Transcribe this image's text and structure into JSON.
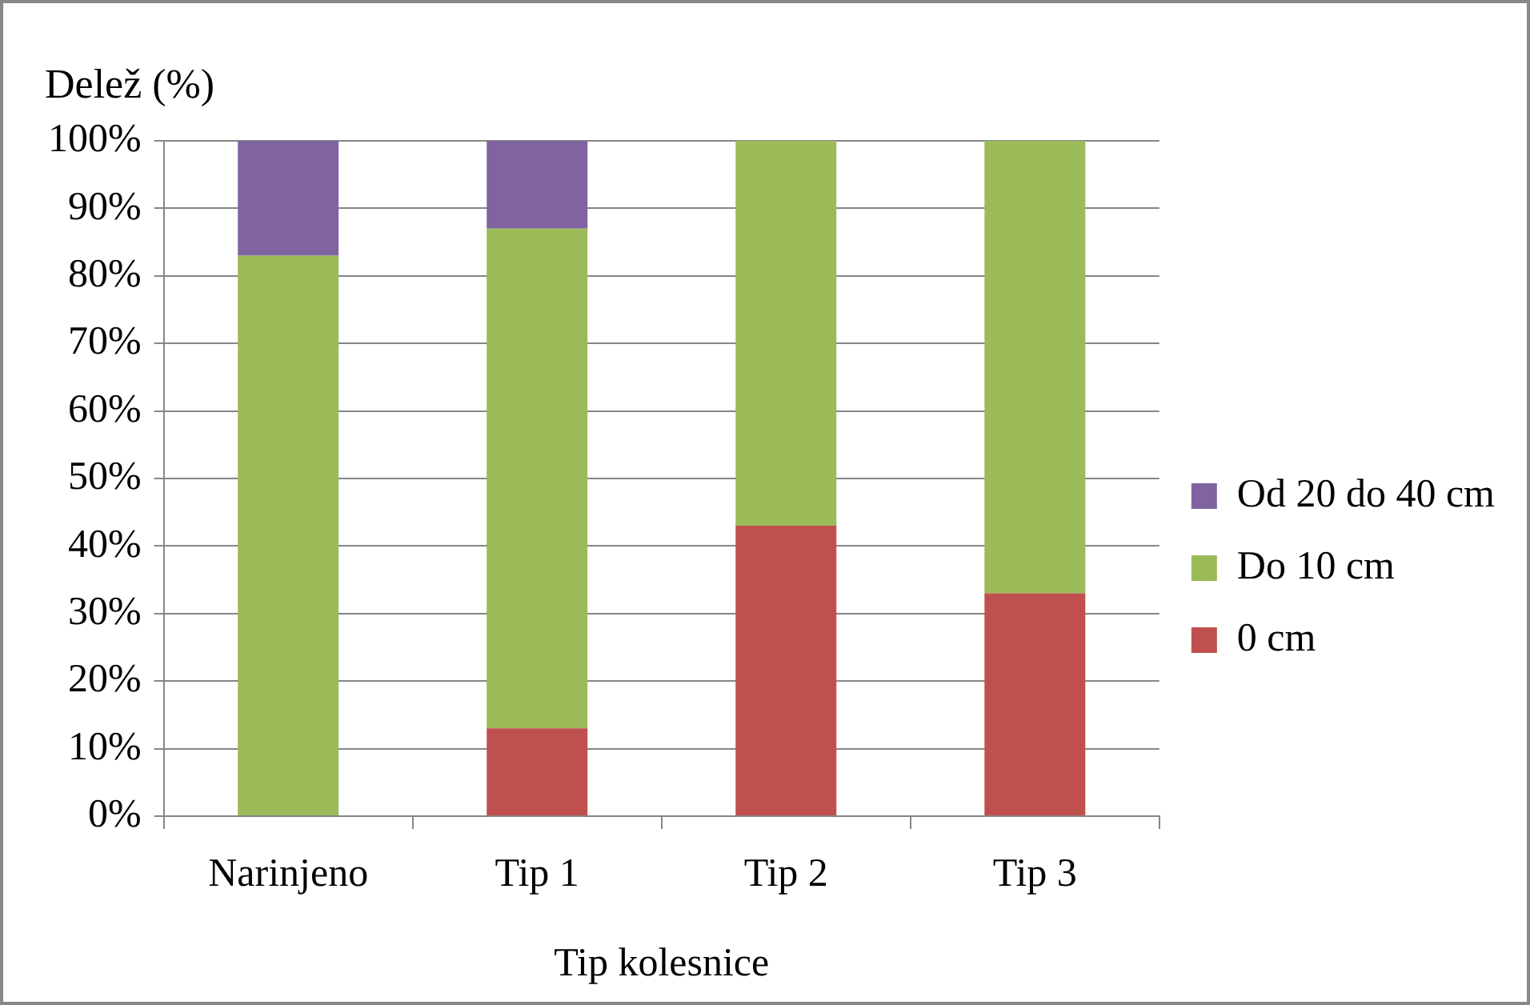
{
  "chart_data": {
    "type": "bar",
    "stacked": true,
    "ylabel": "Delež (%)",
    "xlabel": "Tip kolesnice",
    "categories": [
      "Narinjeno",
      "Tip 1",
      "Tip 2",
      "Tip 3"
    ],
    "series": [
      {
        "name": "0 cm",
        "color": "#c0504d",
        "values": [
          0,
          13,
          43,
          33
        ]
      },
      {
        "name": "Do 10 cm",
        "color": "#9bbb59",
        "values": [
          83,
          74,
          57,
          67
        ]
      },
      {
        "name": "Od 20 do 40 cm",
        "color": "#8064a2",
        "values": [
          17,
          13,
          0,
          0
        ]
      }
    ],
    "ylim": [
      0,
      100
    ],
    "yticks": [
      {
        "value": 0,
        "label": "0%"
      },
      {
        "value": 10,
        "label": "10%"
      },
      {
        "value": 20,
        "label": "20%"
      },
      {
        "value": 30,
        "label": "30%"
      },
      {
        "value": 40,
        "label": "40%"
      },
      {
        "value": 50,
        "label": "50%"
      },
      {
        "value": 60,
        "label": "60%"
      },
      {
        "value": 70,
        "label": "70%"
      },
      {
        "value": 80,
        "label": "80%"
      },
      {
        "value": 90,
        "label": "90%"
      },
      {
        "value": 100,
        "label": "100%"
      }
    ],
    "grid": "y",
    "legend": "right"
  }
}
